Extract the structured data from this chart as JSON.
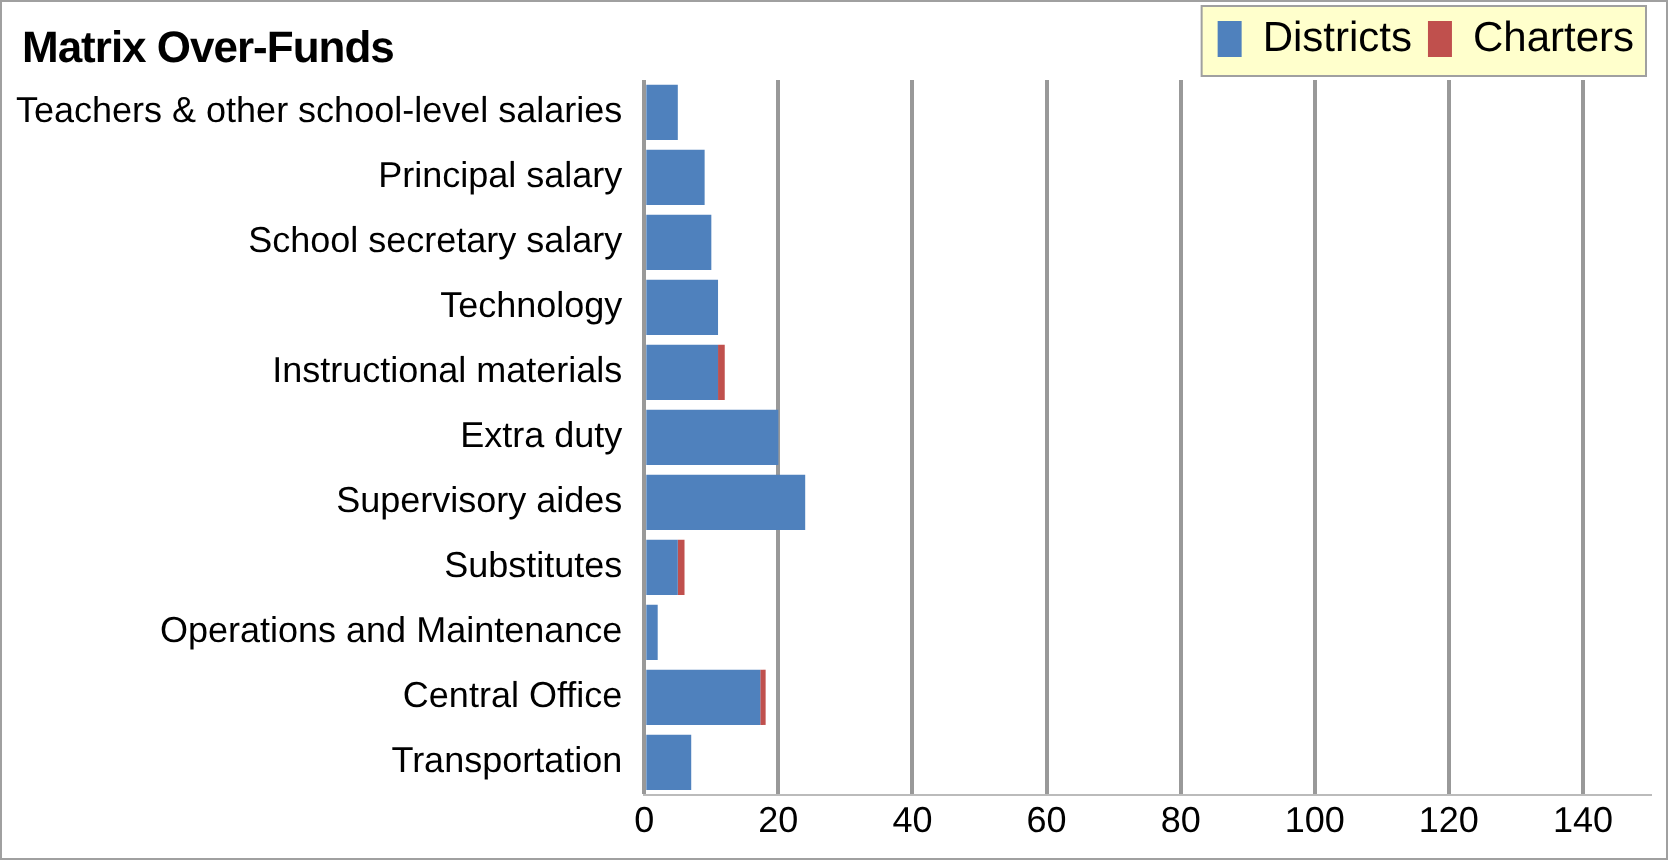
{
  "chart_data": {
    "type": "bar",
    "title": "Matrix Over-Funds",
    "orientation": "horizontal",
    "stacked": true,
    "categories": [
      "Teachers & other school-level salaries",
      "Principal salary",
      "School secretary salary",
      "Technology",
      "Instructional materials",
      "Extra duty",
      "Supervisory aides",
      "Substitutes",
      "Operations and Maintenance",
      "Central Office",
      "Transportation"
    ],
    "series": [
      {
        "name": "Districts",
        "color": "#4f81bd",
        "values": [
          5,
          9,
          10,
          11,
          11,
          20,
          24,
          5,
          2,
          17.3,
          7
        ]
      },
      {
        "name": "Charters",
        "color": "#c0504d",
        "values": [
          0,
          0,
          0,
          0,
          1,
          0,
          0,
          1,
          0,
          0.8,
          0
        ]
      }
    ],
    "xlim": [
      0,
      150
    ],
    "xticks": [
      0,
      20,
      40,
      60,
      80,
      100,
      120,
      140
    ],
    "grid": "x",
    "legend": "top right"
  }
}
